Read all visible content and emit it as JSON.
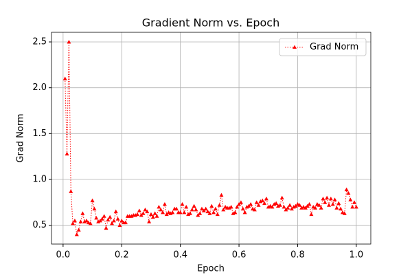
{
  "chart_data": {
    "type": "line",
    "title": "Gradient Norm vs. Epoch",
    "xlabel": "Epoch",
    "ylabel": "Grad Norm",
    "x": [
      0.0067,
      0.0133,
      0.02,
      0.0267,
      0.0333,
      0.04,
      0.0467,
      0.0533,
      0.06,
      0.0667,
      0.0733,
      0.08,
      0.0867,
      0.0933,
      0.1,
      0.1067,
      0.1133,
      0.12,
      0.1267,
      0.1333,
      0.14,
      0.1467,
      0.1533,
      0.16,
      0.1667,
      0.1733,
      0.18,
      0.1867,
      0.1933,
      0.2,
      0.2067,
      0.2133,
      0.22,
      0.2267,
      0.2333,
      0.24,
      0.2467,
      0.2533,
      0.26,
      0.2667,
      0.2733,
      0.28,
      0.2867,
      0.2933,
      0.3,
      0.3067,
      0.3133,
      0.32,
      0.3267,
      0.3333,
      0.34,
      0.3467,
      0.3533,
      0.36,
      0.3667,
      0.3733,
      0.38,
      0.3867,
      0.3933,
      0.4,
      0.4067,
      0.4133,
      0.42,
      0.4267,
      0.4333,
      0.44,
      0.4467,
      0.4533,
      0.46,
      0.4667,
      0.4733,
      0.48,
      0.4867,
      0.4933,
      0.5,
      0.5067,
      0.5133,
      0.52,
      0.5267,
      0.5333,
      0.54,
      0.5467,
      0.5533,
      0.56,
      0.5667,
      0.5733,
      0.58,
      0.5867,
      0.5933,
      0.6,
      0.6067,
      0.6133,
      0.62,
      0.6267,
      0.6333,
      0.64,
      0.6467,
      0.6533,
      0.66,
      0.6667,
      0.6733,
      0.68,
      0.6867,
      0.6933,
      0.7,
      0.7067,
      0.7133,
      0.72,
      0.7267,
      0.7333,
      0.74,
      0.7467,
      0.7533,
      0.76,
      0.7667,
      0.7733,
      0.78,
      0.7867,
      0.7933,
      0.8,
      0.8067,
      0.8133,
      0.82,
      0.8267,
      0.8333,
      0.84,
      0.8467,
      0.8533,
      0.86,
      0.8667,
      0.8733,
      0.88,
      0.8867,
      0.8933,
      0.9,
      0.9067,
      0.9133,
      0.92,
      0.9267,
      0.9333,
      0.94,
      0.9467,
      0.9533,
      0.96,
      0.9667,
      0.9733,
      0.98,
      0.9867,
      0.9933,
      1.0
    ],
    "series": [
      {
        "name": "Grad Norm",
        "color": "#ff0000",
        "values": [
          2.1,
          1.28,
          2.5,
          0.87,
          0.52,
          0.55,
          0.4,
          0.45,
          0.54,
          0.63,
          0.54,
          0.55,
          0.53,
          0.52,
          0.77,
          0.68,
          0.58,
          0.54,
          0.55,
          0.57,
          0.6,
          0.47,
          0.56,
          0.59,
          0.52,
          0.55,
          0.65,
          0.57,
          0.5,
          0.55,
          0.53,
          0.53,
          0.6,
          0.6,
          0.6,
          0.61,
          0.61,
          0.62,
          0.66,
          0.61,
          0.63,
          0.67,
          0.65,
          0.54,
          0.62,
          0.59,
          0.63,
          0.6,
          0.7,
          0.67,
          0.64,
          0.73,
          0.62,
          0.64,
          0.63,
          0.64,
          0.68,
          0.68,
          0.64,
          0.64,
          0.73,
          0.64,
          0.7,
          0.62,
          0.63,
          0.67,
          0.71,
          0.67,
          0.61,
          0.63,
          0.68,
          0.66,
          0.68,
          0.65,
          0.63,
          0.71,
          0.64,
          0.68,
          0.62,
          0.72,
          0.83,
          0.67,
          0.7,
          0.69,
          0.69,
          0.7,
          0.63,
          0.64,
          0.7,
          0.73,
          0.75,
          0.68,
          0.64,
          0.7,
          0.71,
          0.73,
          0.68,
          0.67,
          0.75,
          0.72,
          0.76,
          0.77,
          0.74,
          0.79,
          0.7,
          0.71,
          0.7,
          0.73,
          0.74,
          0.71,
          0.72,
          0.8,
          0.7,
          0.67,
          0.69,
          0.72,
          0.68,
          0.7,
          0.71,
          0.73,
          0.72,
          0.69,
          0.7,
          0.69,
          0.71,
          0.73,
          0.62,
          0.7,
          0.69,
          0.73,
          0.72,
          0.69,
          0.79,
          0.75,
          0.8,
          0.72,
          0.79,
          0.73,
          0.78,
          0.69,
          0.74,
          0.68,
          0.64,
          0.63,
          0.89,
          0.85,
          0.78,
          0.7,
          0.75,
          0.7
        ]
      }
    ],
    "xlim": [
      -0.0395,
      1.0495
    ],
    "xticks": [
      {
        "value": 0,
        "label": "0.0"
      },
      0.2,
      0.4,
      0.6,
      0.8,
      {
        "value": 1,
        "label": "1.0"
      }
    ],
    "ylim": [
      0.295,
      2.605
    ],
    "yticks": [
      0.5,
      {
        "value": 1,
        "label": "1.0"
      },
      1.5,
      {
        "value": 2,
        "label": "2.0"
      },
      2.5
    ],
    "grid": true,
    "legend": "upper right"
  }
}
